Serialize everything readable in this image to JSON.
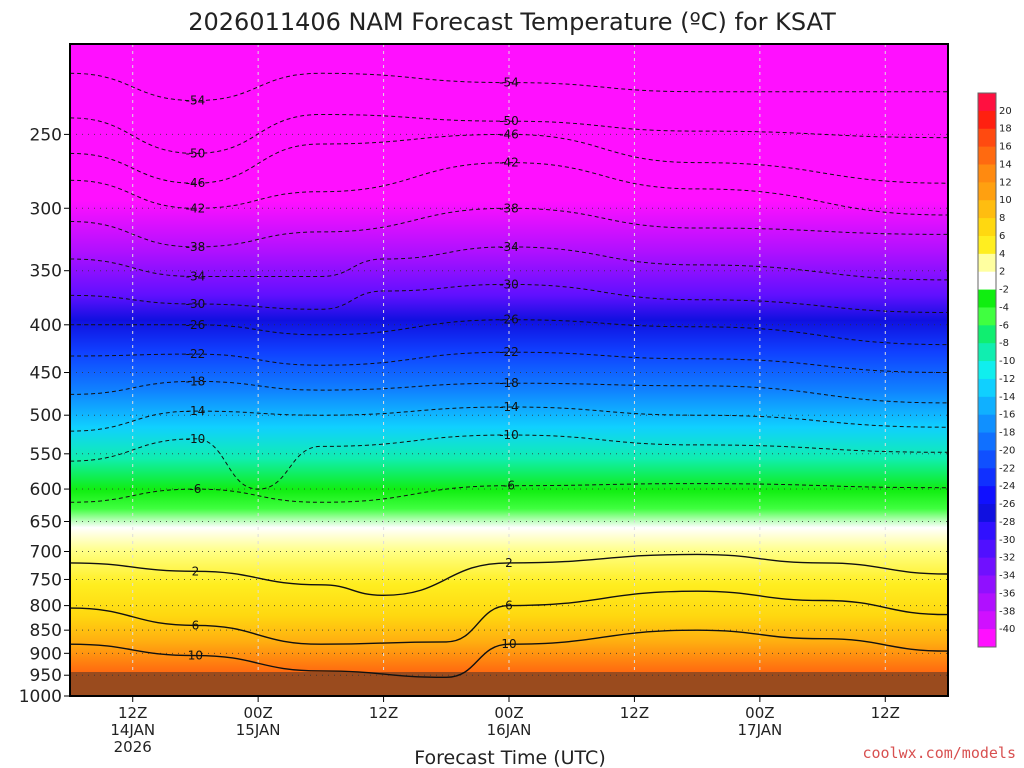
{
  "chart_data": {
    "type": "heatmap",
    "title": "2026011406 NAM Forecast Temperature (ºC) for KSAT",
    "xlabel": "Forecast Time (UTC)",
    "ylabel": "",
    "credit": "coolwx.com/models",
    "y_axis": {
      "scale": "log",
      "direction": "decreasing-upward",
      "ylim": [
        1000,
        200
      ],
      "ticks": [
        250,
        300,
        350,
        400,
        450,
        500,
        550,
        600,
        650,
        700,
        750,
        800,
        850,
        900,
        950,
        1000
      ],
      "tick_labels": [
        "250",
        "300",
        "350",
        "400",
        "450",
        "500",
        "550",
        "600",
        "650",
        "700",
        "750",
        "800",
        "850",
        "900",
        "950",
        "1000"
      ]
    },
    "x_axis": {
      "start": "2026-01-14T06Z",
      "end": "2026-01-17T18Z",
      "ticks": [
        {
          "time": "2026-01-14T12Z",
          "lines": [
            "12Z",
            "14JAN",
            "2026"
          ]
        },
        {
          "time": "2026-01-15T00Z",
          "lines": [
            "00Z",
            "15JAN"
          ]
        },
        {
          "time": "2026-01-15T12Z",
          "lines": [
            "12Z"
          ]
        },
        {
          "time": "2026-01-16T00Z",
          "lines": [
            "00Z",
            "16JAN"
          ]
        },
        {
          "time": "2026-01-16T12Z",
          "lines": [
            "12Z"
          ]
        },
        {
          "time": "2026-01-17T00Z",
          "lines": [
            "00Z",
            "17JAN"
          ]
        },
        {
          "time": "2026-01-17T12Z",
          "lines": [
            "12Z"
          ]
        }
      ]
    },
    "colorbar": {
      "labels": [
        "20",
        "18",
        "16",
        "14",
        "12",
        "10",
        "8",
        "6",
        "4",
        "2",
        "-2",
        "-4",
        "-6",
        "-8",
        "-10",
        "-12",
        "-14",
        "-16",
        "-18",
        "-20",
        "-22",
        "-24",
        "-26",
        "-28",
        "-30",
        "-32",
        "-34",
        "-36",
        "-38",
        "-40"
      ],
      "colors": [
        "#ff1040",
        "#ff2010",
        "#ff4a10",
        "#ff6a10",
        "#ff8a10",
        "#ffa010",
        "#ffbd10",
        "#ffd810",
        "#ffee20",
        "#ffffa0",
        "#ffffff",
        "#10ee10",
        "#40ff40",
        "#10ee70",
        "#10eeb0",
        "#10eeee",
        "#10d0ff",
        "#10b0ff",
        "#1090ff",
        "#1070ff",
        "#1050ff",
        "#1030ff",
        "#1010ff",
        "#1010e0",
        "#3010ff",
        "#5010ff",
        "#7010ff",
        "#9010ff",
        "#b010ff",
        "#d010ff",
        "#ff10ff"
      ]
    },
    "isotherms": [
      {
        "value": -54,
        "label": "-54",
        "points": [
          [
            "2026-01-14T06Z",
            215
          ],
          [
            "2026-01-14T18Z",
            230
          ],
          [
            "2026-01-15T06Z",
            215
          ],
          [
            "2026-01-16T00Z",
            220
          ],
          [
            "2026-01-16T18Z",
            225
          ],
          [
            "2026-01-17T18Z",
            225
          ]
        ]
      },
      {
        "value": -50,
        "label": "-50",
        "points": [
          [
            "2026-01-14T06Z",
            240
          ],
          [
            "2026-01-14T18Z",
            262
          ],
          [
            "2026-01-15T06Z",
            238
          ],
          [
            "2026-01-16T00Z",
            242
          ],
          [
            "2026-01-16T18Z",
            248
          ],
          [
            "2026-01-17T18Z",
            252
          ]
        ]
      },
      {
        "value": -46,
        "label": "-46",
        "points": [
          [
            "2026-01-14T06Z",
            262
          ],
          [
            "2026-01-14T18Z",
            282
          ],
          [
            "2026-01-15T06Z",
            256
          ],
          [
            "2026-01-16T00Z",
            250
          ],
          [
            "2026-01-16T18Z",
            268
          ],
          [
            "2026-01-17T18Z",
            282
          ]
        ]
      },
      {
        "value": -42,
        "label": "-42",
        "points": [
          [
            "2026-01-14T06Z",
            280
          ],
          [
            "2026-01-14T18Z",
            300
          ],
          [
            "2026-01-15T06Z",
            288
          ],
          [
            "2026-01-16T00Z",
            268
          ],
          [
            "2026-01-16T18Z",
            286
          ],
          [
            "2026-01-17T18Z",
            305
          ]
        ]
      },
      {
        "value": -38,
        "label": "-38",
        "points": [
          [
            "2026-01-14T06Z",
            310
          ],
          [
            "2026-01-14T18Z",
            330
          ],
          [
            "2026-01-15T06Z",
            318
          ],
          [
            "2026-01-16T00Z",
            300
          ],
          [
            "2026-01-16T18Z",
            315
          ],
          [
            "2026-01-17T18Z",
            320
          ]
        ]
      },
      {
        "value": -34,
        "label": "-34",
        "points": [
          [
            "2026-01-14T06Z",
            340
          ],
          [
            "2026-01-14T18Z",
            355
          ],
          [
            "2026-01-15T06Z",
            355
          ],
          [
            "2026-01-15T12Z",
            340
          ],
          [
            "2026-01-16T00Z",
            330
          ],
          [
            "2026-01-16T18Z",
            345
          ],
          [
            "2026-01-17T18Z",
            358
          ]
        ]
      },
      {
        "value": -30,
        "label": "-30",
        "points": [
          [
            "2026-01-14T06Z",
            372
          ],
          [
            "2026-01-14T18Z",
            380
          ],
          [
            "2026-01-15T06Z",
            385
          ],
          [
            "2026-01-15T12Z",
            368
          ],
          [
            "2026-01-16T00Z",
            362
          ],
          [
            "2026-01-16T18Z",
            376
          ],
          [
            "2026-01-17T18Z",
            388
          ]
        ]
      },
      {
        "value": -26,
        "label": "-26",
        "points": [
          [
            "2026-01-14T06Z",
            400
          ],
          [
            "2026-01-14T18Z",
            400
          ],
          [
            "2026-01-15T06Z",
            410
          ],
          [
            "2026-01-16T00Z",
            395
          ],
          [
            "2026-01-16T18Z",
            402
          ],
          [
            "2026-01-17T18Z",
            420
          ]
        ]
      },
      {
        "value": -22,
        "label": "-22",
        "points": [
          [
            "2026-01-14T06Z",
            432
          ],
          [
            "2026-01-14T18Z",
            430
          ],
          [
            "2026-01-15T06Z",
            442
          ],
          [
            "2026-01-16T00Z",
            428
          ],
          [
            "2026-01-16T18Z",
            435
          ],
          [
            "2026-01-17T18Z",
            450
          ]
        ]
      },
      {
        "value": -18,
        "label": "-18",
        "points": [
          [
            "2026-01-14T06Z",
            475
          ],
          [
            "2026-01-14T18Z",
            460
          ],
          [
            "2026-01-15T06Z",
            470
          ],
          [
            "2026-01-16T00Z",
            462
          ],
          [
            "2026-01-16T18Z",
            465
          ],
          [
            "2026-01-17T18Z",
            485
          ]
        ]
      },
      {
        "value": -14,
        "label": "-14",
        "points": [
          [
            "2026-01-14T06Z",
            520
          ],
          [
            "2026-01-14T18Z",
            495
          ],
          [
            "2026-01-15T06Z",
            500
          ],
          [
            "2026-01-16T00Z",
            490
          ],
          [
            "2026-01-16T18Z",
            500
          ],
          [
            "2026-01-17T18Z",
            515
          ]
        ]
      },
      {
        "value": -10,
        "label": "-10",
        "points": [
          [
            "2026-01-14T06Z",
            560
          ],
          [
            "2026-01-14T18Z",
            530
          ],
          [
            "2026-01-15T00Z",
            600
          ],
          [
            "2026-01-15T06Z",
            540
          ],
          [
            "2026-01-16T00Z",
            525
          ],
          [
            "2026-01-16T18Z",
            538
          ],
          [
            "2026-01-17T18Z",
            548
          ]
        ]
      },
      {
        "value": -6,
        "label": "-6",
        "points": [
          [
            "2026-01-14T06Z",
            620
          ],
          [
            "2026-01-14T18Z",
            600
          ],
          [
            "2026-01-15T06Z",
            620
          ],
          [
            "2026-01-16T00Z",
            595
          ],
          [
            "2026-01-16T18Z",
            592
          ],
          [
            "2026-01-17T18Z",
            598
          ]
        ]
      },
      {
        "value": 2,
        "label": "2",
        "points": [
          [
            "2026-01-14T06Z",
            720
          ],
          [
            "2026-01-14T18Z",
            735
          ],
          [
            "2026-01-15T06Z",
            760
          ],
          [
            "2026-01-15T12Z",
            780
          ],
          [
            "2026-01-16T00Z",
            720
          ],
          [
            "2026-01-16T18Z",
            705
          ],
          [
            "2026-01-17T06Z",
            720
          ],
          [
            "2026-01-17T18Z",
            740
          ]
        ]
      },
      {
        "value": 6,
        "label": "6",
        "points": [
          [
            "2026-01-14T06Z",
            805
          ],
          [
            "2026-01-14T18Z",
            840
          ],
          [
            "2026-01-15T06Z",
            880
          ],
          [
            "2026-01-15T18Z",
            875
          ],
          [
            "2026-01-16T00Z",
            800
          ],
          [
            "2026-01-16T18Z",
            772
          ],
          [
            "2026-01-17T06Z",
            790
          ],
          [
            "2026-01-17T18Z",
            818
          ]
        ]
      },
      {
        "value": 10,
        "label": "10",
        "points": [
          [
            "2026-01-14T06Z",
            880
          ],
          [
            "2026-01-14T18Z",
            905
          ],
          [
            "2026-01-15T06Z",
            940
          ],
          [
            "2026-01-15T18Z",
            955
          ],
          [
            "2026-01-16T00Z",
            880
          ],
          [
            "2026-01-16T18Z",
            850
          ],
          [
            "2026-01-17T06Z",
            868
          ],
          [
            "2026-01-17T18Z",
            895
          ]
        ]
      }
    ]
  }
}
